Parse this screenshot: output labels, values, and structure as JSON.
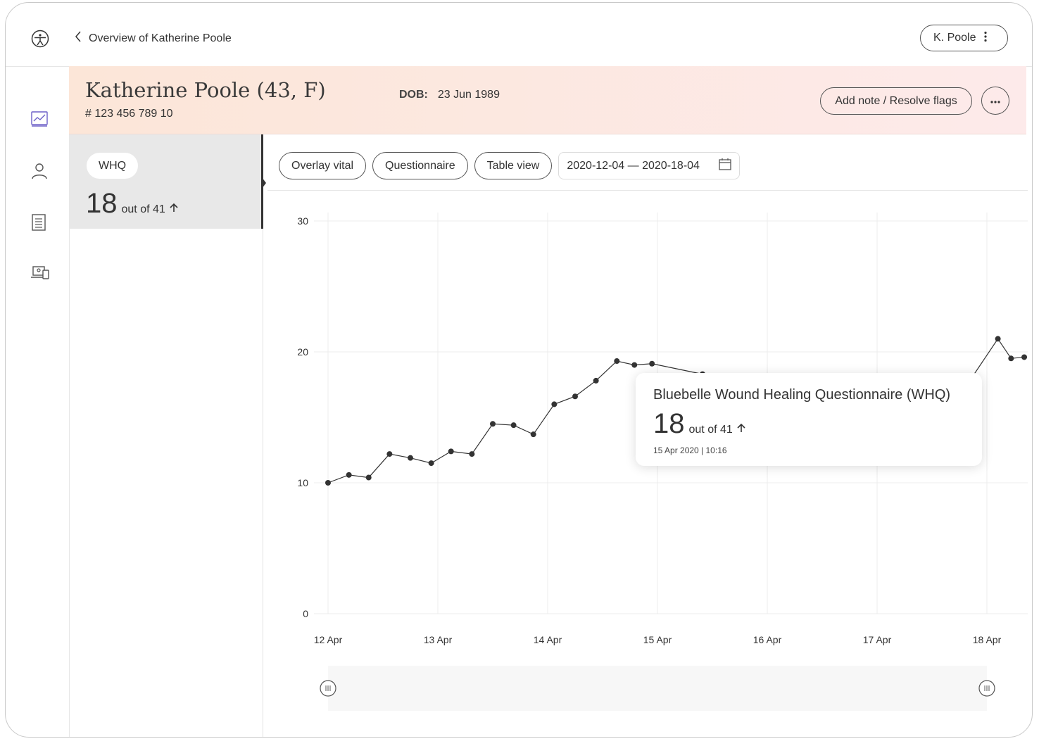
{
  "nav": {
    "back_label": "Overview of Katherine Poole",
    "user_label": "K. Poole"
  },
  "patient": {
    "name": "Katherine Poole (43, F)",
    "id": "# 123 456 789 10",
    "dob_label": "DOB:",
    "dob": "23 Jun 1989"
  },
  "actions": {
    "add_note": "Add note / Resolve flags"
  },
  "measure": {
    "tag": "WHQ",
    "value": "18",
    "suffix": "out of 41"
  },
  "toolbar": {
    "overlay": "Overlay vital",
    "questionnaire": "Questionnaire",
    "table_view": "Table view",
    "date_range": "2020-12-04 — 2020-18-04"
  },
  "tooltip": {
    "title": "Bluebelle Wound Healing Questionnaire (WHQ)",
    "value": "18",
    "suffix": "out of 41",
    "timestamp": "15 Apr 2020 | 10:16"
  },
  "colors": {
    "accent": "#6b5fc7",
    "line": "#333333",
    "header_start": "#fce6d8",
    "header_end": "#fdeaea"
  },
  "chart_data": {
    "type": "line",
    "title": "",
    "xlabel": "",
    "ylabel": "",
    "ylim": [
      0,
      30
    ],
    "yticks": [
      0,
      10,
      20,
      30
    ],
    "xticks": [
      "12 Apr",
      "13 Apr",
      "14 Apr",
      "15 Apr",
      "16 Apr",
      "17 Apr",
      "18 Apr"
    ],
    "x": [
      0,
      0.19,
      0.37,
      0.56,
      0.75,
      0.94,
      1.12,
      1.31,
      1.5,
      1.69,
      1.87,
      2.06,
      2.25,
      2.44,
      2.63,
      2.79,
      2.95,
      3.41,
      5.86,
      6.1,
      6.22,
      6.34
    ],
    "series": [
      {
        "values": [
          10,
          10.6,
          10.4,
          12.2,
          11.9,
          11.5,
          12.4,
          12.2,
          14.5,
          14.4,
          13.7,
          16.0,
          16.6,
          17.8,
          19.3,
          19.0,
          19.1,
          18.3,
          18.0,
          21.0,
          19.5,
          19.6
        ]
      }
    ],
    "grid": true
  }
}
